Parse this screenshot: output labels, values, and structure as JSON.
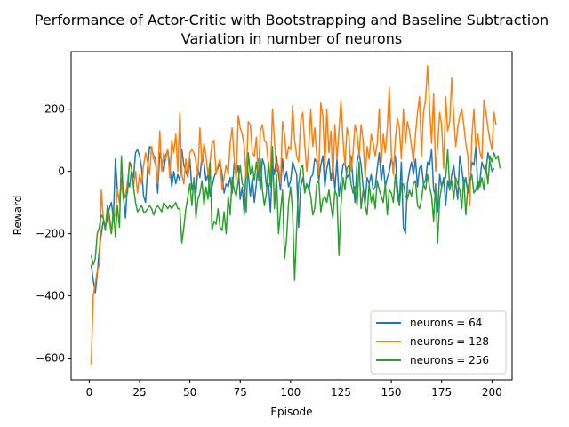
{
  "chart_data": {
    "type": "line",
    "title": "Performance of Actor-Critic with Bootstrapping and Baseline Subtraction",
    "subtitle": "Variation in number of neurons",
    "xlabel": "Episode",
    "ylabel": "Reward",
    "xlim": [
      -9,
      210
    ],
    "ylim": [
      -670,
      385
    ],
    "xticks": [
      0,
      25,
      50,
      75,
      100,
      125,
      150,
      175,
      200
    ],
    "yticks": [
      -600,
      -400,
      -200,
      0,
      200
    ],
    "grid": false,
    "legend_position": "bottom-right",
    "x_start": 1,
    "x_step": 1,
    "series": [
      {
        "name": "neurons = 64",
        "color": "#1f77b4",
        "values": [
          -300,
          -350,
          -390,
          -330,
          -250,
          -200,
          -160,
          -180,
          -150,
          -120,
          -100,
          -150,
          40,
          -60,
          -100,
          -20,
          -80,
          -150,
          -30,
          -50,
          0,
          -20,
          60,
          70,
          50,
          10,
          -80,
          -100,
          10,
          80,
          70,
          50,
          40,
          -70,
          60,
          30,
          0,
          50,
          70,
          20,
          -50,
          0,
          -40,
          -10,
          -30,
          70,
          20,
          0,
          -20,
          40,
          -60,
          -30,
          -70,
          10,
          -20,
          50,
          30,
          -30,
          -10,
          -80,
          -50,
          -20,
          0,
          10,
          30,
          -10,
          -70,
          -40,
          -50,
          -20,
          -70,
          30,
          -10,
          20,
          -90,
          -50,
          -140,
          30,
          -10,
          -80,
          -20,
          -100,
          -40,
          40,
          -60,
          40,
          20,
          -50,
          -40,
          -130,
          20,
          -10,
          50,
          -10,
          -60,
          40,
          -30,
          0,
          -50,
          -30,
          30,
          10,
          -10,
          -180,
          -50,
          -20,
          -60,
          -40,
          -60,
          -20,
          -10,
          40,
          30,
          -30,
          20,
          50,
          -50,
          10,
          40,
          -30,
          20,
          -60,
          40,
          -80,
          -30,
          20,
          30,
          -20,
          -10,
          50,
          -30,
          -100,
          30,
          60,
          20,
          -50,
          -100,
          -20,
          -40,
          -10,
          -60,
          -50,
          10,
          60,
          -30,
          20,
          -50,
          -20,
          0,
          40,
          20,
          50,
          -50,
          -100,
          30,
          -180,
          -200,
          -40,
          0,
          30,
          -10,
          40,
          -50,
          10,
          20,
          -40,
          -30,
          30,
          20,
          70,
          -60,
          -80,
          -130,
          -10,
          -50,
          -20,
          -110,
          -30,
          -60,
          -10,
          20,
          -40,
          -90,
          50,
          10,
          -50,
          -20,
          -70,
          -40,
          30,
          20,
          80,
          -60,
          -30,
          30,
          10,
          0,
          60,
          30,
          0,
          10
        ]
      },
      {
        "name": "neurons = 128",
        "color": "#ff7f0e",
        "values": [
          -620,
          -400,
          -360,
          -320,
          -300,
          -60,
          -150,
          -180,
          -120,
          -160,
          -200,
          -150,
          -140,
          -60,
          -100,
          -40,
          -90,
          -70,
          -40,
          30,
          20,
          -50,
          0,
          -70,
          -10,
          -40,
          20,
          60,
          30,
          -10,
          80,
          40,
          20,
          -40,
          130,
          0,
          60,
          40,
          70,
          -20,
          100,
          60,
          120,
          0,
          190,
          -10,
          -40,
          40,
          -20,
          60,
          70,
          60,
          30,
          -10,
          140,
          20,
          90,
          50,
          -10,
          30,
          90,
          100,
          -10,
          20,
          40,
          -60,
          -20,
          20,
          -10,
          90,
          140,
          40,
          -30,
          180,
          140,
          120,
          80,
          -20,
          160,
          150,
          60,
          50,
          110,
          -30,
          130,
          150,
          100,
          90,
          20,
          -20,
          200,
          100,
          0,
          20,
          -40,
          160,
          120,
          40,
          80,
          70,
          210,
          100,
          50,
          30,
          160,
          190,
          90,
          0,
          80,
          200,
          80,
          140,
          50,
          -10,
          220,
          180,
          10,
          200,
          60,
          130,
          -30,
          150,
          40,
          130,
          230,
          100,
          20,
          140,
          110,
          0,
          60,
          150,
          120,
          50,
          150,
          100,
          -20,
          80,
          40,
          120,
          90,
          50,
          90,
          200,
          30,
          120,
          60,
          140,
          270,
          60,
          -10,
          100,
          170,
          140,
          40,
          200,
          90,
          160,
          130,
          80,
          30,
          120,
          190,
          240,
          50,
          190,
          230,
          340,
          210,
          90,
          250,
          0,
          80,
          190,
          150,
          10,
          240,
          130,
          160,
          300,
          180,
          80,
          140,
          180,
          200,
          150,
          90,
          50,
          -110,
          110,
          200,
          80,
          120,
          60,
          40,
          230,
          190,
          140,
          100,
          70,
          190,
          150
        ]
      },
      {
        "name": "neurons = 256",
        "color": "#2ca02c",
        "values": [
          -270,
          -300,
          -280,
          -200,
          -180,
          -140,
          -150,
          -190,
          -110,
          -140,
          -200,
          -120,
          -210,
          -110,
          -180,
          50,
          -90,
          -80,
          -70,
          30,
          10,
          -50,
          -100,
          -130,
          -120,
          -110,
          -130,
          -130,
          -120,
          -110,
          -120,
          -140,
          -120,
          -110,
          -120,
          -130,
          -100,
          -110,
          -120,
          -110,
          -120,
          -110,
          -100,
          -120,
          -120,
          -230,
          -180,
          -120,
          -80,
          -40,
          -110,
          -20,
          -150,
          -90,
          -70,
          -30,
          -110,
          -50,
          -90,
          30,
          -190,
          -160,
          -170,
          -120,
          -180,
          -190,
          -130,
          -200,
          -80,
          -140,
          -20,
          -60,
          -80,
          -30,
          20,
          -40,
          -50,
          -130,
          60,
          -10,
          20,
          -30,
          30,
          -20,
          40,
          -60,
          -110,
          -70,
          30,
          -50,
          80,
          -120,
          -10,
          -200,
          -130,
          -60,
          -280,
          -220,
          -100,
          -50,
          -130,
          -350,
          -180,
          -40,
          10,
          20,
          -70,
          -40,
          -50,
          -80,
          -140,
          -120,
          -40,
          -30,
          -130,
          -90,
          -80,
          -100,
          -60,
          -110,
          -150,
          -60,
          -80,
          -270,
          -110,
          -20,
          -60,
          10,
          20,
          -40,
          -70,
          -50,
          -110,
          30,
          -120,
          -60,
          -110,
          -140,
          -40,
          -100,
          -70,
          -120,
          -30,
          -60,
          -80,
          -100,
          -40,
          -140,
          -60,
          -70,
          -100,
          -10,
          -80,
          -110,
          -40,
          -40,
          -80,
          -90,
          -60,
          -80,
          -40,
          -30,
          -110,
          -120,
          -90,
          -40,
          -60,
          -10,
          -50,
          -80,
          -160,
          -40,
          -230,
          -90,
          -50,
          -30,
          -20,
          70,
          -60,
          -30,
          -90,
          -20,
          -40,
          -60,
          -120,
          -20,
          -140,
          -50,
          -30,
          -10,
          -70,
          -60,
          -30,
          -50,
          -20,
          -60,
          20,
          -40,
          50,
          30,
          60,
          40,
          50,
          10
        ]
      }
    ]
  }
}
